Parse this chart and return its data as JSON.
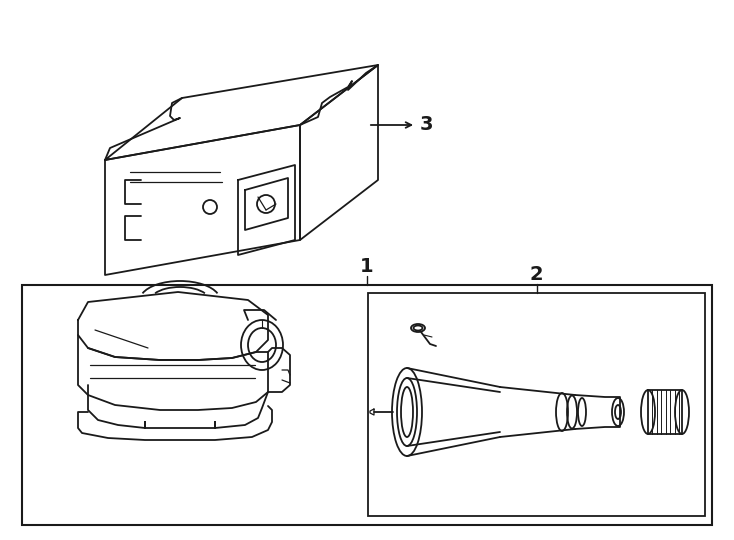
{
  "bg_color": "#ffffff",
  "line_color": "#1a1a1a",
  "fig_width": 7.34,
  "fig_height": 5.4,
  "label_1": "1",
  "label_2": "2",
  "label_3": "3"
}
